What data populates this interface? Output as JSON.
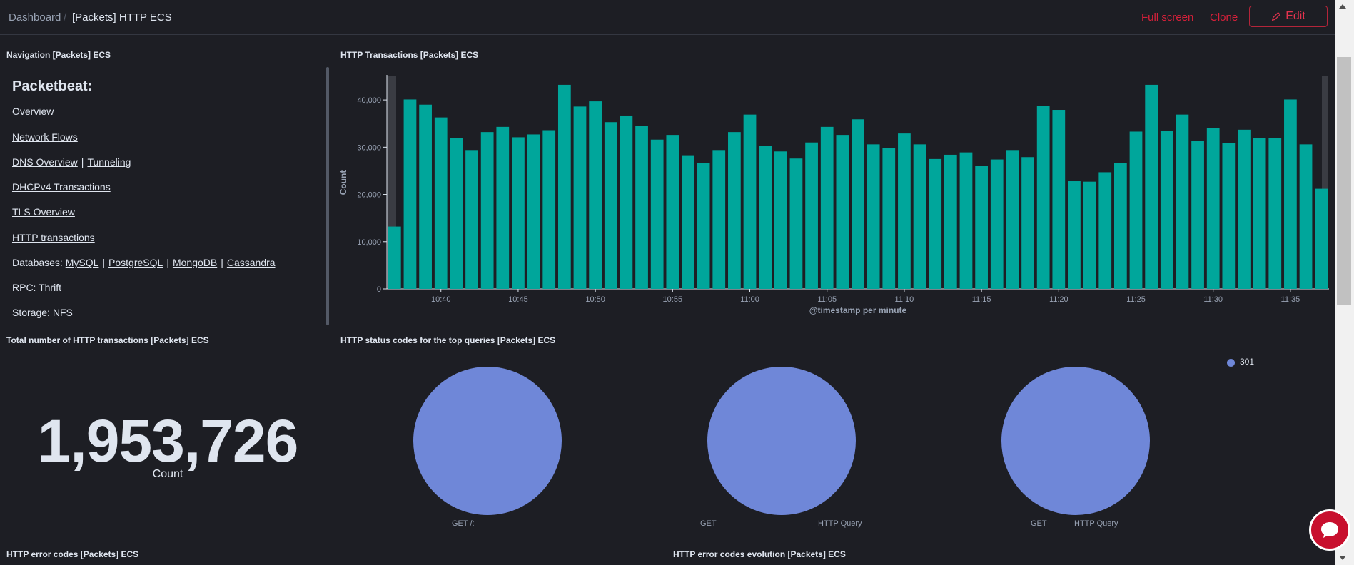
{
  "header": {
    "breadcrumb_home": "Dashboard",
    "breadcrumb_separator": "/",
    "breadcrumb_current": "[Packets] HTTP ECS",
    "full_screen": "Full screen",
    "clone": "Clone",
    "edit": "Edit"
  },
  "panels": {
    "navigation_title": "Navigation [Packets] ECS",
    "transactions_title": "HTTP Transactions [Packets] ECS",
    "total_title": "Total number of HTTP transactions [Packets] ECS",
    "status_codes_title": "HTTP status codes for the top queries [Packets] ECS",
    "error_codes_title": "HTTP error codes [Packets] ECS",
    "error_evolution_title": "HTTP error codes evolution [Packets] ECS"
  },
  "navigation": {
    "heading": "Packetbeat:",
    "overview": "Overview",
    "network_flows": "Network Flows",
    "dns_overview": "DNS Overview",
    "tunneling": "Tunneling",
    "dhcp": "DHCPv4 Transactions",
    "tls": "TLS Overview",
    "http": "HTTP transactions",
    "databases_label": "Databases:",
    "mysql": "MySQL",
    "postgresql": "PostgreSQL",
    "mongodb": "MongoDB",
    "cassandra": "Cassandra",
    "rpc_label": "RPC:",
    "thrift": "Thrift",
    "storage_label": "Storage:",
    "nfs": "NFS",
    "separator": "|"
  },
  "metric": {
    "value": "1,953,726",
    "label": "Count"
  },
  "chart_data": [
    {
      "type": "bar",
      "title": "HTTP Transactions [Packets] ECS",
      "xlabel": "@timestamp per minute",
      "ylabel": "Count",
      "ylim": [
        0,
        45000
      ],
      "yticks": [
        0,
        10000,
        20000,
        30000,
        40000
      ],
      "ytick_labels": [
        "0",
        "10,000",
        "20,000",
        "30,000",
        "40,000"
      ],
      "xtick_labels": [
        "10:40",
        "10:45",
        "10:50",
        "10:55",
        "11:00",
        "11:05",
        "11:10",
        "11:15",
        "11:20",
        "11:25",
        "11:30",
        "11:35"
      ],
      "x_start_minute": "10:37",
      "bar_color": "#00a69b",
      "values": [
        13200,
        40100,
        39000,
        36300,
        31900,
        29400,
        33200,
        34300,
        32100,
        32700,
        33600,
        43200,
        38600,
        39700,
        35300,
        36700,
        34500,
        31600,
        32600,
        28300,
        26600,
        29400,
        33200,
        36900,
        30300,
        29100,
        27600,
        31000,
        34300,
        32600,
        35900,
        30600,
        29900,
        32900,
        30600,
        27500,
        28400,
        28900,
        26100,
        27400,
        29400,
        27900,
        38800,
        37900,
        22800,
        22700,
        24700,
        26600,
        33300,
        43200,
        33400,
        36900,
        31300,
        34100,
        30900,
        33700,
        31900,
        31900,
        40100,
        30600,
        21200
      ]
    },
    {
      "type": "pie",
      "title": "HTTP status codes for the top queries [Packets] ECS",
      "legend": [
        "301"
      ],
      "slices": [
        {
          "label": "GET /:",
          "category": "301",
          "fraction": 1.0
        },
        {
          "label": "GET ... HTTP Query",
          "category": "301",
          "fraction": 1.0
        },
        {
          "label": "GET ... HTTP Query",
          "category": "301",
          "fraction": 1.0
        }
      ],
      "slice_color": "#6f87d8"
    }
  ],
  "pie_labels": {
    "pie1": "GET /:",
    "pie2_a": "GET",
    "pie2_b": "HTTP Query",
    "pie3_a": "GET",
    "pie3_b": "HTTP Query",
    "legend_301": "301"
  },
  "colors": {
    "background": "#1d1e24",
    "accent": "#d6203a",
    "bar": "#00a69b",
    "pie": "#6f87d8"
  }
}
